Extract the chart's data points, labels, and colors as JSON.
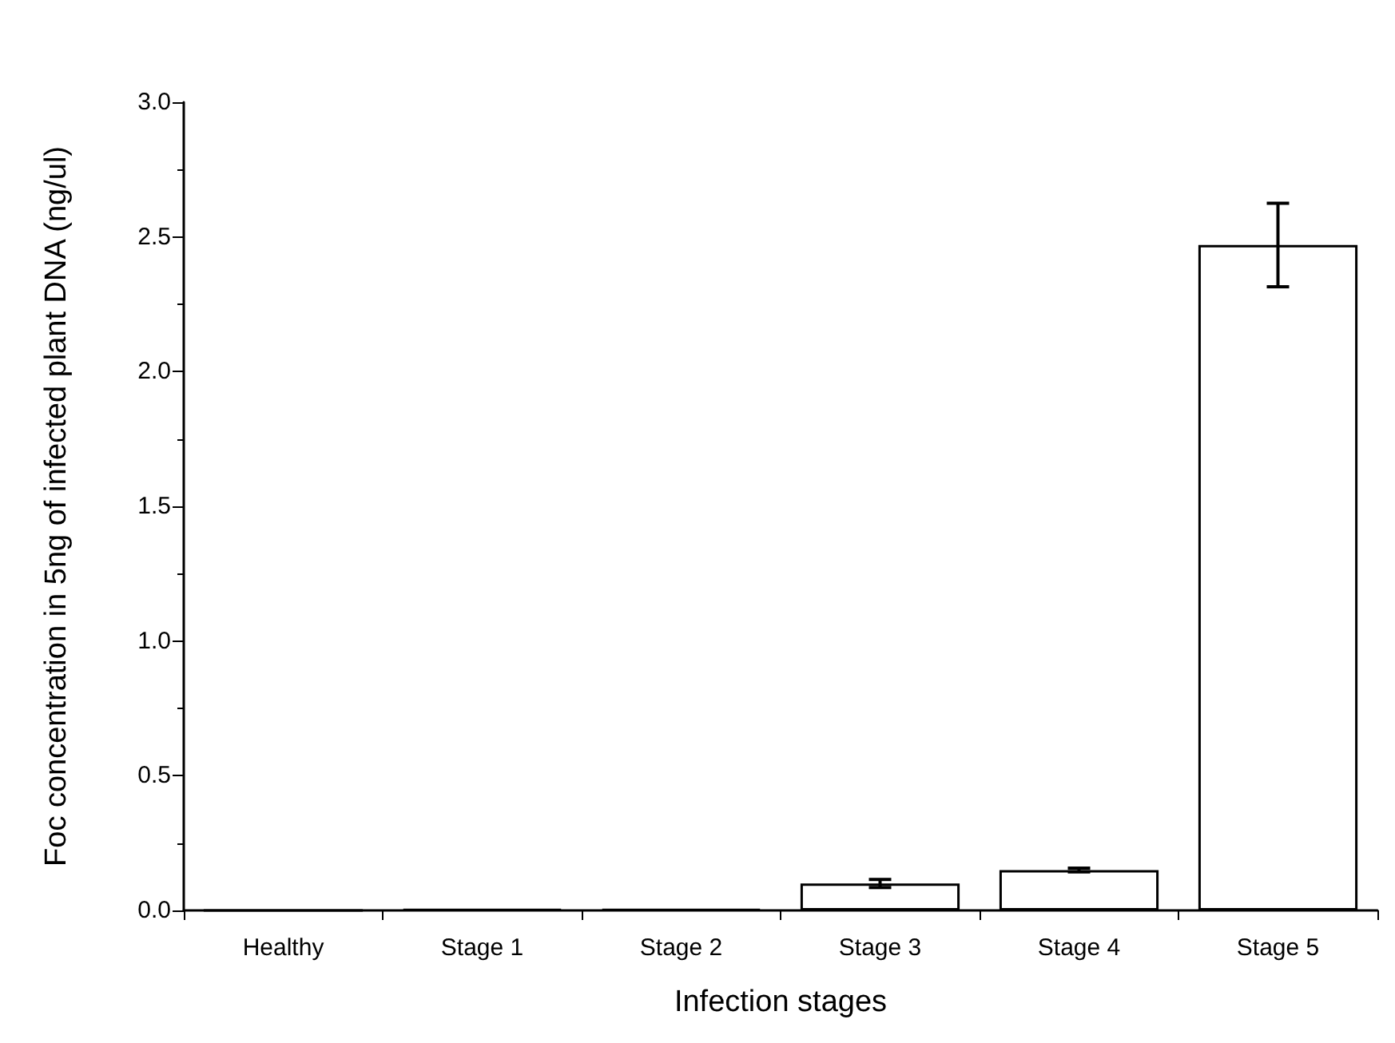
{
  "chart_data": {
    "type": "bar",
    "xlabel": "Infection stages",
    "ylabel": "Foc concentration in 5ng of infected plant DNA (ng/ul)",
    "categories": [
      "Healthy",
      "Stage 1",
      "Stage 2",
      "Stage 3",
      "Stage 4",
      "Stage 5"
    ],
    "series": [
      {
        "color": "#ffffff",
        "values": [
          0,
          0.005,
          0.005,
          0.1,
          0.15,
          2.47
        ],
        "errors": [
          null,
          null,
          null,
          0.015,
          0.007,
          0.155
        ]
      }
    ],
    "ylim": [
      0,
      3
    ],
    "yticks": [
      {
        "value": 0,
        "label": "0.0"
      },
      {
        "value": 0.5,
        "label": "0.5"
      },
      {
        "value": 1,
        "label": "1.0"
      },
      {
        "value": 1.5,
        "label": "1.5"
      },
      {
        "value": 2,
        "label": "2.0"
      },
      {
        "value": 2.5,
        "label": "2.5"
      },
      {
        "value": 3,
        "label": "3.0"
      }
    ],
    "grid": false
  }
}
